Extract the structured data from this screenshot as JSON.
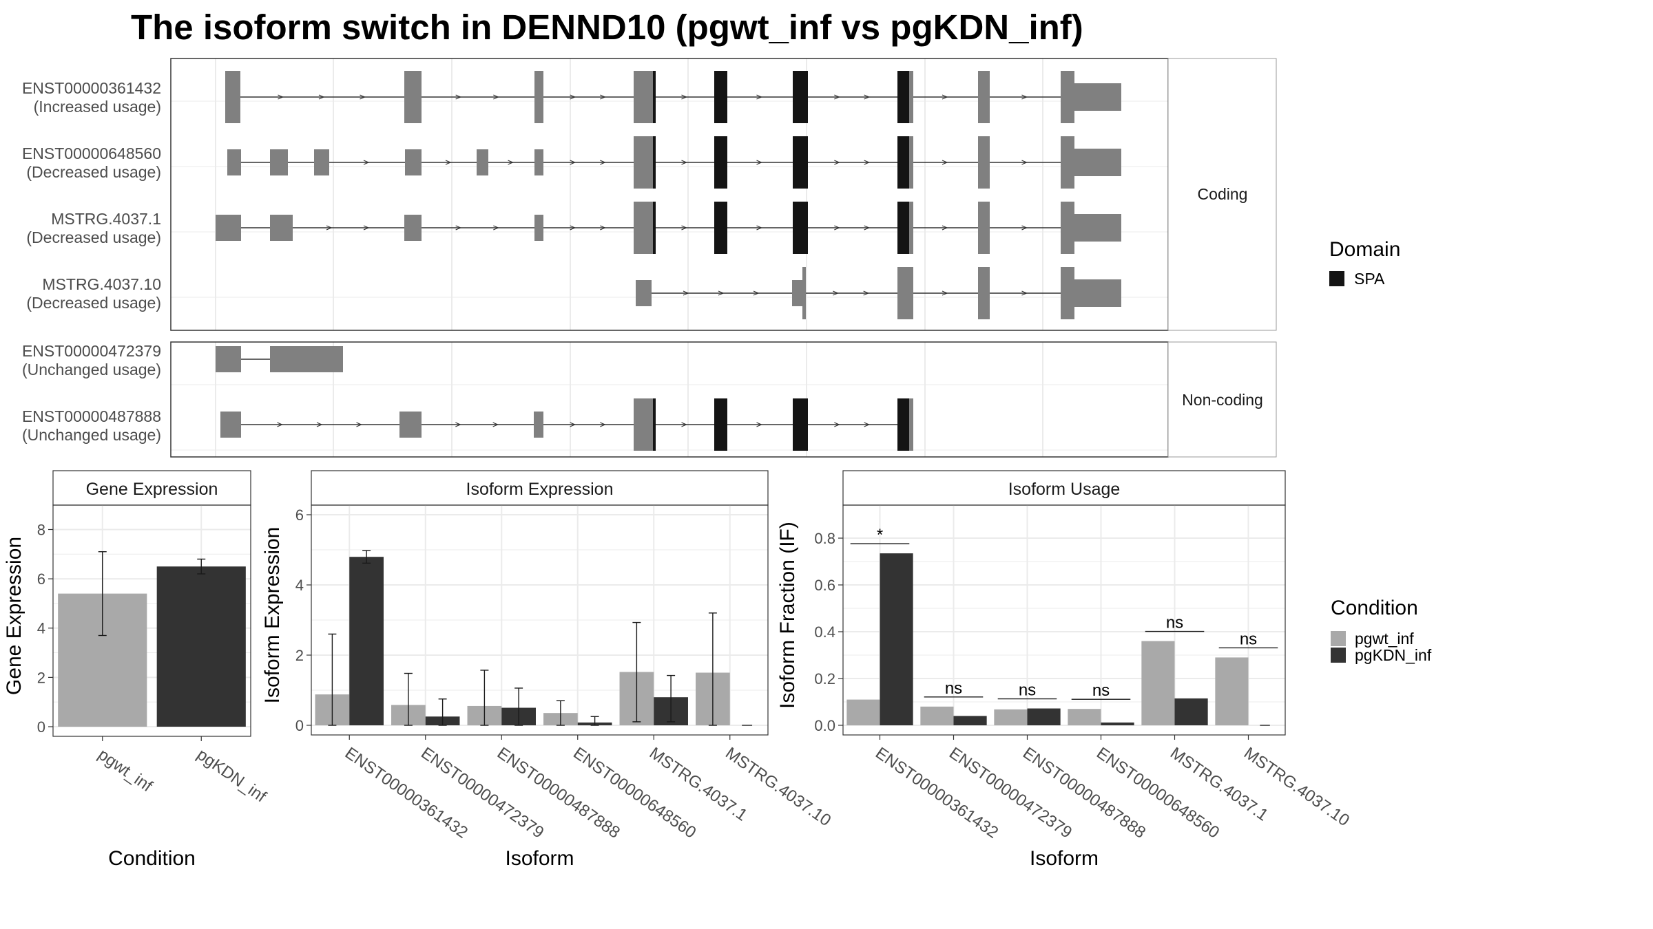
{
  "title": "The isoform switch in DENND10 (pgwt_inf vs pgKDN_inf)",
  "colors": {
    "exon": "#808080",
    "domain": "#141414",
    "cond1": "#a9a9a9",
    "cond2": "#333333",
    "grid": "#ebebeb",
    "border": "#333333",
    "strip_border": "#999999"
  },
  "structure": {
    "groups": [
      {
        "label": "Coding",
        "transcripts": [
          {
            "name": "ENST00000361432",
            "usage": "(Increased usage)"
          },
          {
            "name": "ENST00000648560",
            "usage": "(Decreased usage)"
          },
          {
            "name": "MSTRG.4037.1",
            "usage": "(Decreased usage)"
          },
          {
            "name": "MSTRG.4037.10",
            "usage": "(Decreased usage)"
          }
        ]
      },
      {
        "label": "Non-coding",
        "transcripts": [
          {
            "name": "ENST00000472379",
            "usage": "(Unchanged usage)"
          },
          {
            "name": "ENST00000487888",
            "usage": "(Unchanged usage)"
          }
        ]
      }
    ],
    "domain_legend": {
      "title": "Domain",
      "items": [
        {
          "label": "SPA",
          "color": "#141414"
        }
      ]
    }
  },
  "condition_legend": {
    "title": "Condition",
    "items": [
      {
        "label": "pgwt_inf",
        "color": "#a9a9a9"
      },
      {
        "label": "pgKDN_inf",
        "color": "#333333"
      }
    ]
  },
  "chart_data": [
    {
      "type": "bar",
      "title": "Gene Expression",
      "xlabel": "Condition",
      "ylabel": "Gene Expression",
      "categories": [
        "pgwt_inf",
        "pgKDN_inf"
      ],
      "values": [
        5.4,
        6.5
      ],
      "error_low": [
        3.7,
        6.2
      ],
      "error_high": [
        7.1,
        6.8
      ],
      "ylim": [
        0,
        8.6
      ],
      "yticks": [
        "0",
        "2",
        "4",
        "6",
        "8"
      ]
    },
    {
      "type": "bar",
      "title": "Isoform Expression",
      "xlabel": "Isoform",
      "ylabel": "Isoform Expression",
      "categories": [
        "ENST00000361432",
        "ENST00000472379",
        "ENST00000487888",
        "ENST00000648560",
        "MSTRG.4037.1",
        "MSTRG.4037.10"
      ],
      "series": [
        {
          "name": "pgwt_inf",
          "values": [
            0.88,
            0.58,
            0.55,
            0.35,
            1.52,
            1.5
          ],
          "error_low": [
            0,
            0,
            0,
            0,
            0.1,
            0
          ],
          "error_high": [
            2.6,
            1.48,
            1.57,
            0.7,
            2.93,
            3.2
          ]
        },
        {
          "name": "pgKDN_inf",
          "values": [
            4.8,
            0.25,
            0.5,
            0.08,
            0.8,
            0
          ],
          "error_low": [
            4.62,
            0,
            0,
            0,
            0.1,
            0
          ],
          "error_high": [
            4.98,
            0.75,
            1.06,
            0.25,
            1.42,
            0
          ]
        }
      ],
      "ylim": [
        0,
        6
      ],
      "yticks": [
        "0",
        "2",
        "4",
        "6"
      ]
    },
    {
      "type": "bar",
      "title": "Isoform Usage",
      "xlabel": "Isoform",
      "ylabel": "Isoform Fraction (IF)",
      "categories": [
        "ENST00000361432",
        "ENST00000472379",
        "ENST00000487888",
        "ENST00000648560",
        "MSTRG.4037.1",
        "MSTRG.4037.10"
      ],
      "series": [
        {
          "name": "pgwt_inf",
          "values": [
            0.11,
            0.08,
            0.068,
            0.07,
            0.36,
            0.29
          ]
        },
        {
          "name": "pgKDN_inf",
          "values": [
            0.735,
            0.04,
            0.072,
            0.012,
            0.115,
            0
          ]
        }
      ],
      "significance": [
        "*",
        "ns",
        "ns",
        "ns",
        "ns",
        "ns"
      ],
      "ylim": [
        0,
        0.9
      ],
      "yticks": [
        "0.0",
        "0.2",
        "0.4",
        "0.6",
        "0.8"
      ]
    }
  ]
}
